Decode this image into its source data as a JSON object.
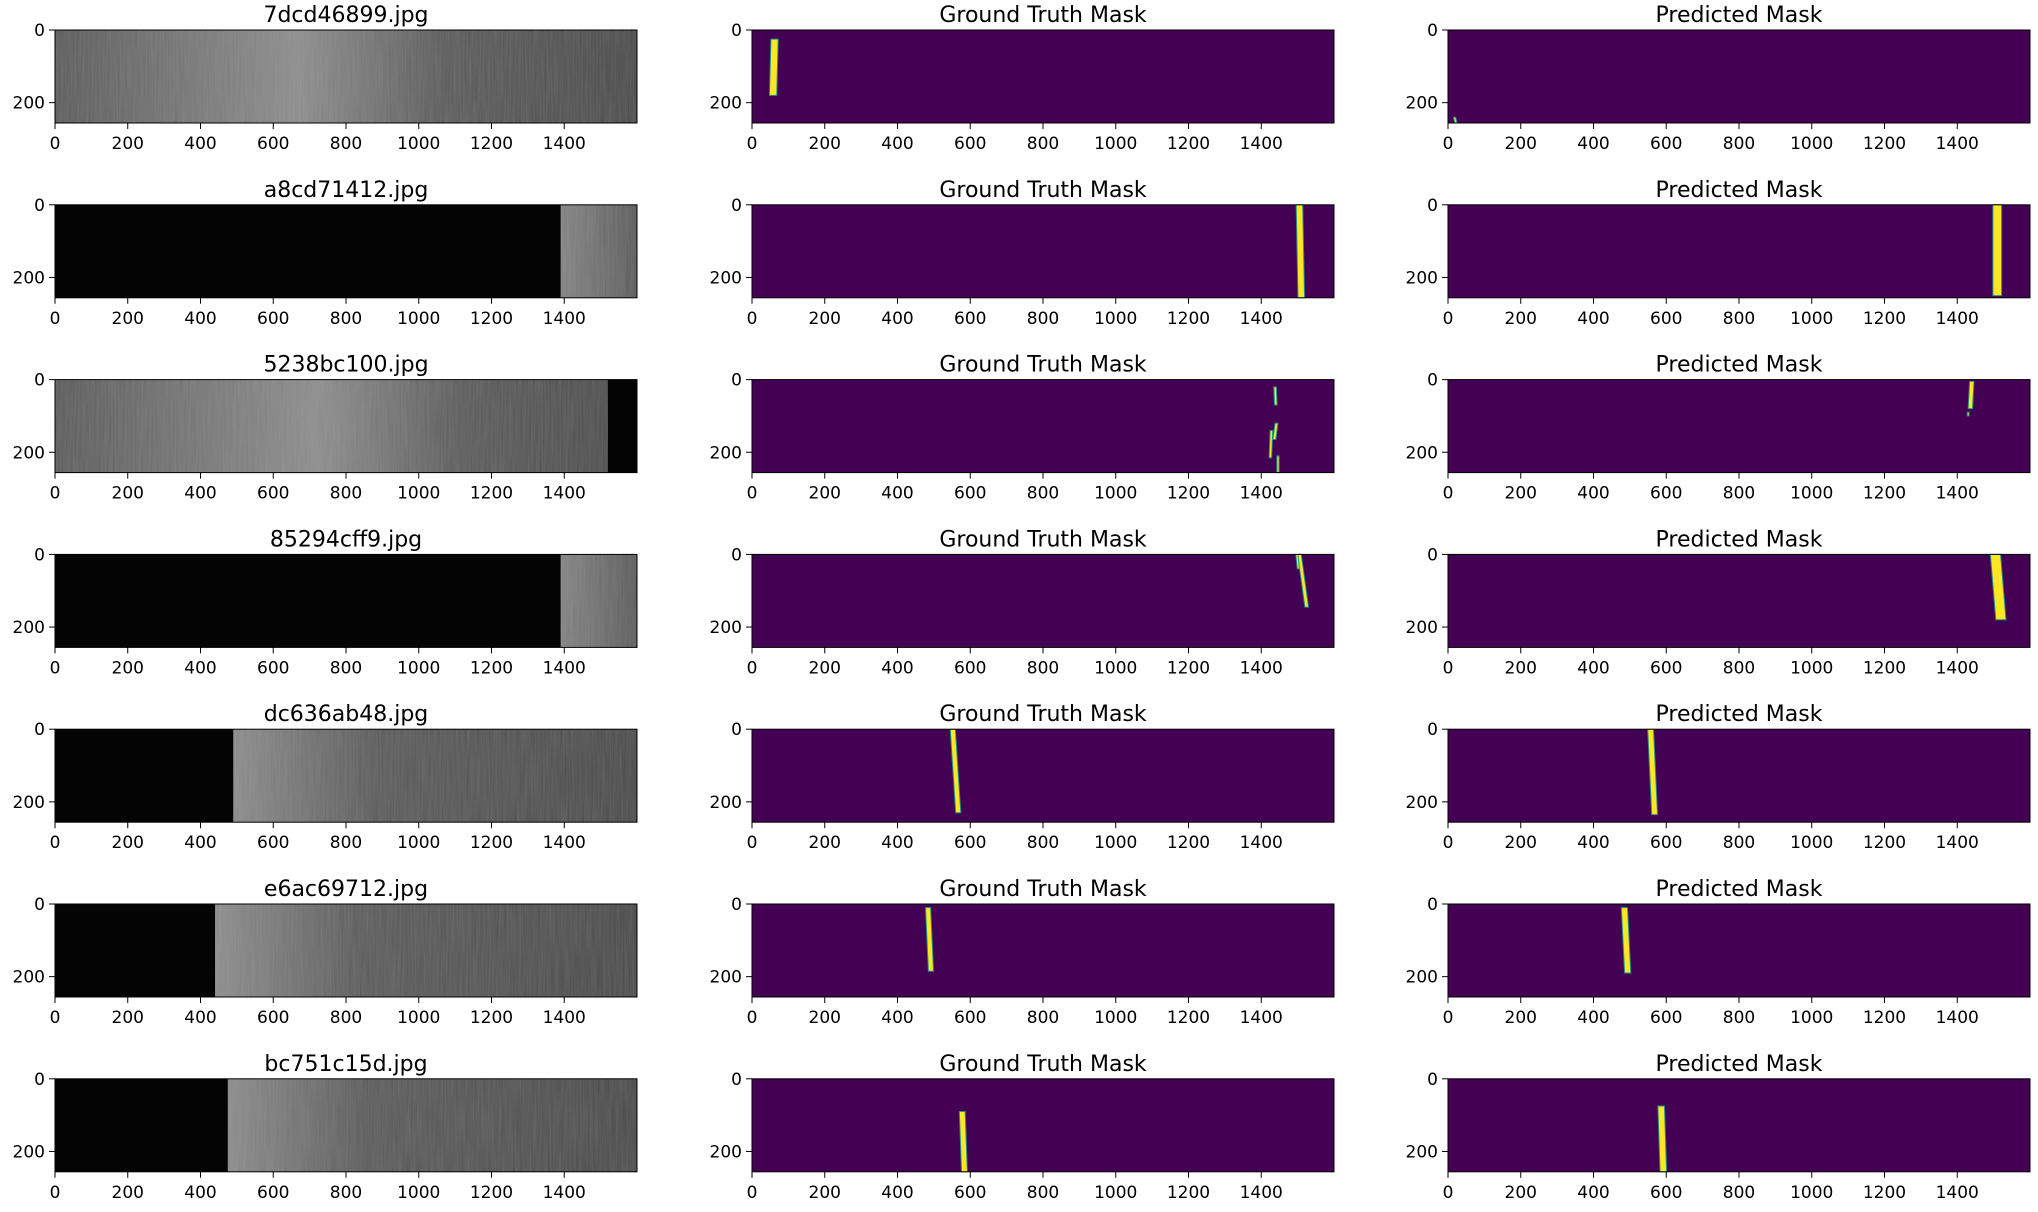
{
  "figure": {
    "grid": "7x3",
    "column_kinds": [
      "image",
      "ground_truth",
      "predicted"
    ],
    "colors": {
      "mask_background": "#440154",
      "mask_fill": "#fde725",
      "mask_edge": "#21918c",
      "image_dark": "#040404",
      "image_mid": "#5a5a5a",
      "image_light": "#8c8c8c"
    }
  },
  "chart_data": {
    "type": "image_grid",
    "x_ticks": [
      0,
      200,
      400,
      600,
      800,
      1000,
      1200,
      1400
    ],
    "y_ticks": [
      0,
      200
    ],
    "xlim": [
      0,
      1600
    ],
    "ylim": [
      256,
      0
    ],
    "rows": [
      {
        "image_title": "7dcd46899.jpg",
        "image": {
          "dark_from": null,
          "dark_to": null,
          "glow_center": 750
        },
        "ground_truth": {
          "title": "Ground Truth Mask",
          "blobs": [
            {
              "x1": 62,
              "x2": 58,
              "y1": 25,
              "y2": 180,
              "w": 20
            }
          ]
        },
        "predicted": {
          "title": "Predicted Mask",
          "blobs": [
            {
              "x1": 18,
              "x2": 22,
              "y1": 240,
              "y2": 256,
              "w": 6
            }
          ]
        }
      },
      {
        "image_title": "a8cd71412.jpg",
        "image": {
          "dark_from": 0,
          "dark_to": 1390,
          "glow_center": 1420
        },
        "ground_truth": {
          "title": "Ground Truth Mask",
          "blobs": [
            {
              "x1": 1505,
              "x2": 1510,
              "y1": 0,
              "y2": 256,
              "w": 18
            }
          ]
        },
        "predicted": {
          "title": "Predicted Mask",
          "blobs": [
            {
              "x1": 1510,
              "x2": 1510,
              "y1": 0,
              "y2": 250,
              "w": 24
            }
          ]
        }
      },
      {
        "image_title": "5238bc100.jpg",
        "image": {
          "dark_from": 1520,
          "dark_to": 1600,
          "glow_center": null
        },
        "ground_truth": {
          "title": "Ground Truth Mask",
          "blobs": [
            {
              "x1": 1438,
              "x2": 1440,
              "y1": 20,
              "y2": 70,
              "w": 7
            },
            {
              "x1": 1442,
              "x2": 1436,
              "y1": 120,
              "y2": 165,
              "w": 8
            },
            {
              "x1": 1428,
              "x2": 1425,
              "y1": 140,
              "y2": 215,
              "w": 7
            },
            {
              "x1": 1446,
              "x2": 1446,
              "y1": 210,
              "y2": 256,
              "w": 6
            }
          ]
        },
        "predicted": {
          "title": "Predicted Mask",
          "blobs": [
            {
              "x1": 1440,
              "x2": 1436,
              "y1": 5,
              "y2": 80,
              "w": 12
            },
            {
              "x1": 1430,
              "x2": 1430,
              "y1": 90,
              "y2": 100,
              "w": 5
            }
          ]
        }
      },
      {
        "image_title": "85294cff9.jpg",
        "image": {
          "dark_from": 0,
          "dark_to": 1390,
          "glow_center": 1420
        },
        "ground_truth": {
          "title": "Ground Truth Mask",
          "blobs": [
            {
              "x1": 1505,
              "x2": 1525,
              "y1": 0,
              "y2": 145,
              "w": 10
            },
            {
              "x1": 1498,
              "x2": 1502,
              "y1": 0,
              "y2": 40,
              "w": 6
            }
          ]
        },
        "predicted": {
          "title": "Predicted Mask",
          "blobs": [
            {
              "x1": 1505,
              "x2": 1520,
              "y1": 0,
              "y2": 180,
              "w": 28
            }
          ]
        }
      },
      {
        "image_title": "dc636ab48.jpg",
        "image": {
          "dark_from": 0,
          "dark_to": 490,
          "glow_center": 560
        },
        "ground_truth": {
          "title": "Ground Truth Mask",
          "blobs": [
            {
              "x1": 552,
              "x2": 567,
              "y1": 0,
              "y2": 230,
              "w": 14
            }
          ]
        },
        "predicted": {
          "title": "Predicted Mask",
          "blobs": [
            {
              "x1": 557,
              "x2": 568,
              "y1": 0,
              "y2": 235,
              "w": 16
            }
          ]
        }
      },
      {
        "image_title": "e6ac69712.jpg",
        "image": {
          "dark_from": 0,
          "dark_to": 440,
          "glow_center": 520
        },
        "ground_truth": {
          "title": "Ground Truth Mask",
          "blobs": [
            {
              "x1": 484,
              "x2": 492,
              "y1": 10,
              "y2": 185,
              "w": 14
            }
          ]
        },
        "predicted": {
          "title": "Predicted Mask",
          "blobs": [
            {
              "x1": 485,
              "x2": 494,
              "y1": 10,
              "y2": 190,
              "w": 17
            }
          ]
        }
      },
      {
        "image_title": "bc751c15d.jpg",
        "image": {
          "dark_from": 0,
          "dark_to": 475,
          "glow_center": 540
        },
        "ground_truth": {
          "title": "Ground Truth Mask",
          "blobs": [
            {
              "x1": 578,
              "x2": 584,
              "y1": 90,
              "y2": 256,
              "w": 16
            }
          ]
        },
        "predicted": {
          "title": "Predicted Mask",
          "blobs": [
            {
              "x1": 586,
              "x2": 592,
              "y1": 75,
              "y2": 256,
              "w": 18
            }
          ]
        }
      }
    ]
  }
}
